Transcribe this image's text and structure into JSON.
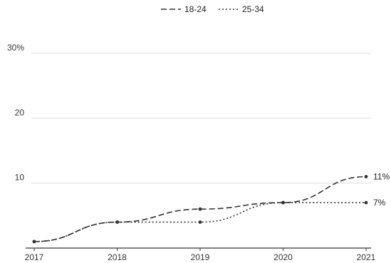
{
  "chart_data": {
    "type": "line",
    "x": [
      "2017",
      "2018",
      "2019",
      "2020",
      "2021"
    ],
    "series": [
      {
        "name": "18-24",
        "values": [
          1,
          4,
          6,
          7,
          11
        ],
        "end_label": "11%",
        "dash": "dashed"
      },
      {
        "name": "25-34",
        "values": [
          1,
          4,
          4,
          7,
          7
        ],
        "end_label": "7%",
        "dash": "dotted"
      }
    ],
    "y_ticks": [
      {
        "value": 10,
        "label": "10"
      },
      {
        "value": 20,
        "label": "20"
      },
      {
        "value": 30,
        "label": "30%"
      }
    ],
    "ylim": [
      0,
      30
    ],
    "grid": true,
    "legend_position": "top-center",
    "colors": {
      "line": "#333333",
      "grid": "#dddddd",
      "axis": "#333333"
    }
  }
}
